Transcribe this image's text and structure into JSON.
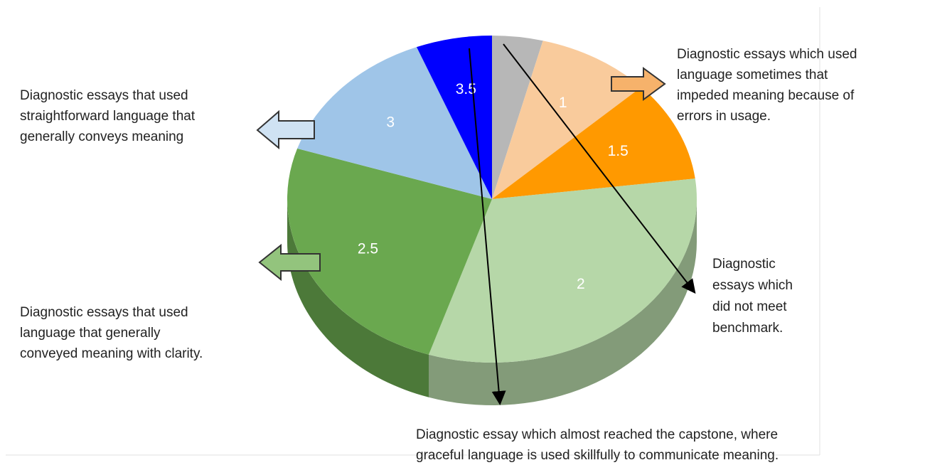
{
  "chart_data": {
    "type": "pie",
    "categories": [
      null,
      "1",
      "1.5",
      "2",
      "2.5",
      "3",
      "3.5"
    ],
    "values": [
      4,
      9,
      10,
      32,
      25,
      14,
      6
    ],
    "colors": [
      "#b7b7b7",
      "#f9cb9c",
      "#ff9900",
      "#b6d7a8",
      "#6aa84f",
      "#9fc5e8",
      "#0000ff"
    ],
    "three_d": true,
    "annotations": [
      [
        "Diagnostic essays which used",
        "language sometimes that",
        "impeded meaning because of",
        "errors in usage."
      ],
      [
        "Diagnostic essays that used",
        "straightforward language that",
        "generally conveys meaning"
      ],
      [
        "Diagnostic essays that used",
        "language that generally",
        "conveyed meaning with clarity."
      ],
      [
        "Diagnostic",
        "essays which",
        "did not meet",
        "benchmark."
      ],
      [
        "Diagnostic essay which almost reached the capstone, where",
        "graceful language is used skillfully to communicate meaning."
      ]
    ]
  }
}
